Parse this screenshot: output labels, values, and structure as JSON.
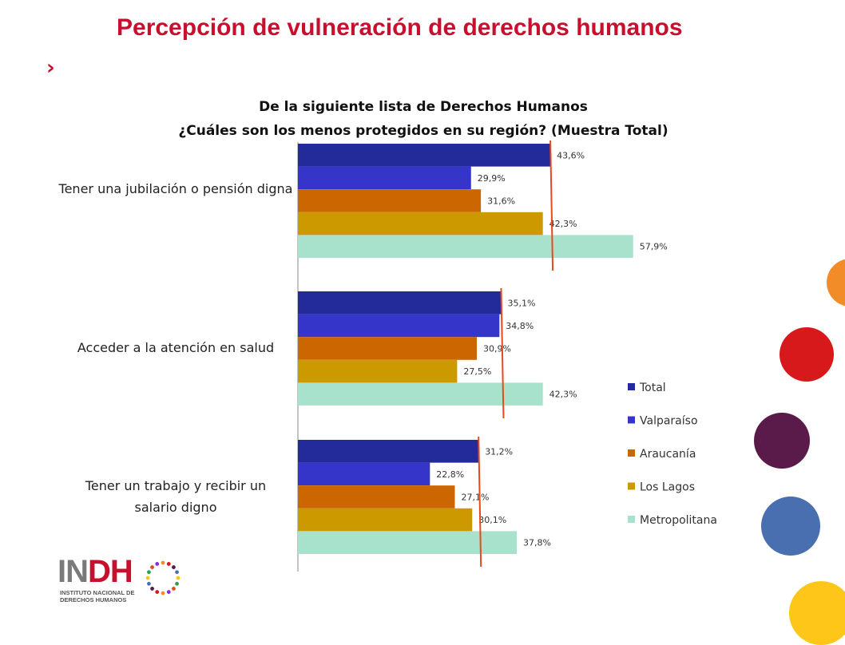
{
  "page": {
    "title": "Percepción de vulneración de derechos humanos",
    "marker": "›"
  },
  "logo": {
    "letters_gray": "IN",
    "letters_red": "DH",
    "subtitle_line1": "INSTITUTO NACIONAL DE",
    "subtitle_line2": "DERECHOS HUMANOS"
  },
  "decorations": {
    "circle_colors": [
      "#f28c28",
      "#d7191c",
      "#5a1a4a",
      "#4a6fb0",
      "#ffc61a"
    ]
  },
  "chart_data": {
    "type": "bar",
    "orientation": "horizontal",
    "title_line1": "De la siguiente lista de Derechos Humanos",
    "title_line2": "¿Cuáles son los menos protegidos en su región? (Muestra Total)",
    "categories": [
      "Tener una jubilación o pensión digna",
      "Acceder a la atención en salud",
      "Tener un trabajo y recibir un salario digno"
    ],
    "series": [
      {
        "name": "Total",
        "color": "#232a9a",
        "values": [
          43.6,
          35.1,
          31.2
        ],
        "labels": [
          "43,6%",
          "35,1%",
          "31,2%"
        ]
      },
      {
        "name": "Valparaíso",
        "color": "#3535c9",
        "values": [
          29.9,
          34.8,
          22.8
        ],
        "labels": [
          "29,9%",
          "34,8%",
          "22,8%"
        ]
      },
      {
        "name": "Araucanía",
        "color": "#cc6600",
        "values": [
          31.6,
          30.9,
          27.1
        ],
        "labels": [
          "31,6%",
          "30,9%",
          "27,1%"
        ]
      },
      {
        "name": "Los Lagos",
        "color": "#cc9900",
        "values": [
          42.3,
          27.5,
          30.1
        ],
        "labels": [
          "42,3%",
          "27,5%",
          "30,1%"
        ]
      },
      {
        "name": "Metropolitana",
        "color": "#a8e2cc",
        "values": [
          57.9,
          42.3,
          37.8
        ],
        "labels": [
          "57,9%",
          "42,3%",
          "37,8%"
        ]
      }
    ],
    "reference_line_color": "#e8481b",
    "legend_position": "right",
    "grid": false
  }
}
